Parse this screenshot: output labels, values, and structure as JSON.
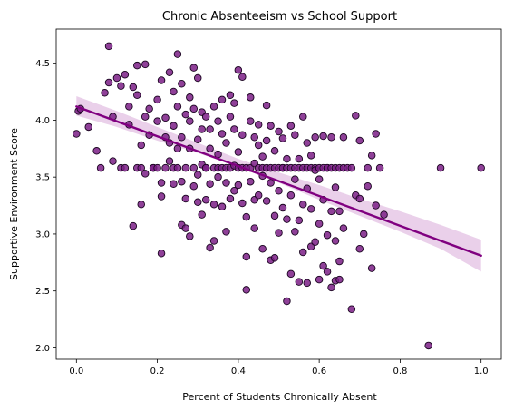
{
  "chart_data": {
    "type": "scatter",
    "title": "Chronic Absenteeism vs School Support",
    "xlabel": "Percent of Students Chronically Absent",
    "ylabel": "Supportive Environment Score",
    "xlim": [
      -0.05,
      1.05
    ],
    "ylim": [
      1.9,
      4.8
    ],
    "xticks": [
      0.0,
      0.2,
      0.4,
      0.6,
      0.8,
      1.0
    ],
    "xtick_labels": [
      "0.0",
      "0.2",
      "0.4",
      "0.6",
      "0.8",
      "1.0"
    ],
    "yticks": [
      2.0,
      2.5,
      3.0,
      3.5,
      4.0,
      4.5
    ],
    "ytick_labels": [
      "2.0",
      "2.5",
      "3.0",
      "3.5",
      "4.0",
      "4.5"
    ],
    "grid": false,
    "legend": "none",
    "point_color": "#7b1f86",
    "point_edge_color": "#1a0520",
    "regression_color": "#800080",
    "ci_color": "#e6c8e6",
    "regression_line": {
      "x": [
        0.0,
        1.0
      ],
      "y": [
        4.12,
        2.81
      ]
    },
    "confidence_band": {
      "x": [
        0.0,
        0.1,
        0.2,
        0.3,
        0.4,
        0.5,
        0.6,
        0.7,
        0.8,
        0.9,
        1.0
      ],
      "lower": [
        4.04,
        3.94,
        3.82,
        3.71,
        3.59,
        3.45,
        3.3,
        3.16,
        3.02,
        2.87,
        2.67
      ],
      "upper": [
        4.21,
        4.08,
        3.94,
        3.8,
        3.66,
        3.54,
        3.43,
        3.31,
        3.2,
        3.08,
        2.95
      ]
    },
    "points": [
      [
        0.0,
        3.88
      ],
      [
        0.005,
        4.08
      ],
      [
        0.01,
        4.1
      ],
      [
        0.03,
        3.94
      ],
      [
        0.05,
        3.73
      ],
      [
        0.06,
        3.58
      ],
      [
        0.07,
        4.24
      ],
      [
        0.08,
        4.33
      ],
      [
        0.08,
        4.65
      ],
      [
        0.09,
        3.64
      ],
      [
        0.09,
        4.03
      ],
      [
        0.1,
        4.37
      ],
      [
        0.11,
        4.3
      ],
      [
        0.11,
        3.58
      ],
      [
        0.12,
        3.58
      ],
      [
        0.12,
        4.4
      ],
      [
        0.13,
        4.12
      ],
      [
        0.13,
        3.96
      ],
      [
        0.14,
        3.07
      ],
      [
        0.14,
        4.29
      ],
      [
        0.15,
        4.48
      ],
      [
        0.15,
        3.58
      ],
      [
        0.15,
        4.22
      ],
      [
        0.16,
        3.26
      ],
      [
        0.16,
        3.58
      ],
      [
        0.16,
        3.78
      ],
      [
        0.17,
        4.49
      ],
      [
        0.17,
        3.53
      ],
      [
        0.17,
        4.03
      ],
      [
        0.18,
        3.87
      ],
      [
        0.18,
        4.1
      ],
      [
        0.19,
        3.58
      ],
      [
        0.19,
        3.58
      ],
      [
        0.2,
        3.99
      ],
      [
        0.2,
        4.18
      ],
      [
        0.2,
        3.58
      ],
      [
        0.21,
        4.35
      ],
      [
        0.21,
        3.45
      ],
      [
        0.21,
        3.33
      ],
      [
        0.21,
        2.83
      ],
      [
        0.22,
        3.58
      ],
      [
        0.22,
        3.85
      ],
      [
        0.22,
        4.02
      ],
      [
        0.23,
        4.42
      ],
      [
        0.23,
        3.8
      ],
      [
        0.23,
        3.64
      ],
      [
        0.24,
        4.25
      ],
      [
        0.24,
        3.44
      ],
      [
        0.24,
        3.58
      ],
      [
        0.24,
        3.95
      ],
      [
        0.25,
        4.58
      ],
      [
        0.25,
        3.75
      ],
      [
        0.25,
        3.58
      ],
      [
        0.25,
        4.12
      ],
      [
        0.26,
        4.32
      ],
      [
        0.26,
        3.08
      ],
      [
        0.26,
        3.46
      ],
      [
        0.26,
        3.85
      ],
      [
        0.27,
        3.58
      ],
      [
        0.27,
        4.05
      ],
      [
        0.27,
        3.31
      ],
      [
        0.27,
        3.05
      ],
      [
        0.28,
        3.75
      ],
      [
        0.28,
        3.99
      ],
      [
        0.28,
        2.98
      ],
      [
        0.28,
        4.2
      ],
      [
        0.29,
        4.1
      ],
      [
        0.29,
        3.42
      ],
      [
        0.29,
        3.58
      ],
      [
        0.29,
        4.46
      ],
      [
        0.3,
        3.52
      ],
      [
        0.3,
        4.37
      ],
      [
        0.3,
        3.83
      ],
      [
        0.3,
        3.28
      ],
      [
        0.31,
        3.17
      ],
      [
        0.31,
        3.61
      ],
      [
        0.31,
        4.07
      ],
      [
        0.31,
        3.92
      ],
      [
        0.32,
        3.58
      ],
      [
        0.32,
        3.3
      ],
      [
        0.32,
        3.58
      ],
      [
        0.32,
        4.03
      ],
      [
        0.33,
        3.75
      ],
      [
        0.33,
        2.88
      ],
      [
        0.33,
        3.44
      ],
      [
        0.33,
        3.92
      ],
      [
        0.34,
        3.58
      ],
      [
        0.34,
        4.12
      ],
      [
        0.34,
        3.26
      ],
      [
        0.34,
        2.94
      ],
      [
        0.35,
        3.7
      ],
      [
        0.35,
        3.58
      ],
      [
        0.35,
        3.99
      ],
      [
        0.35,
        3.5
      ],
      [
        0.36,
        3.88
      ],
      [
        0.36,
        3.58
      ],
      [
        0.36,
        3.24
      ],
      [
        0.36,
        4.18
      ],
      [
        0.37,
        3.02
      ],
      [
        0.37,
        3.58
      ],
      [
        0.37,
        3.8
      ],
      [
        0.37,
        3.45
      ],
      [
        0.38,
        4.03
      ],
      [
        0.38,
        3.58
      ],
      [
        0.38,
        4.22
      ],
      [
        0.38,
        3.31
      ],
      [
        0.39,
        3.6
      ],
      [
        0.39,
        3.38
      ],
      [
        0.39,
        3.92
      ],
      [
        0.39,
        4.15
      ],
      [
        0.4,
        3.72
      ],
      [
        0.4,
        3.58
      ],
      [
        0.4,
        3.43
      ],
      [
        0.4,
        4.44
      ],
      [
        0.41,
        3.27
      ],
      [
        0.41,
        3.58
      ],
      [
        0.41,
        3.87
      ],
      [
        0.41,
        4.38
      ],
      [
        0.42,
        3.58
      ],
      [
        0.42,
        2.8
      ],
      [
        0.42,
        2.51
      ],
      [
        0.42,
        3.15
      ],
      [
        0.43,
        3.99
      ],
      [
        0.43,
        3.58
      ],
      [
        0.43,
        3.46
      ],
      [
        0.43,
        4.2
      ],
      [
        0.44,
        3.3
      ],
      [
        0.44,
        3.62
      ],
      [
        0.44,
        3.85
      ],
      [
        0.44,
        3.05
      ],
      [
        0.45,
        3.58
      ],
      [
        0.45,
        3.78
      ],
      [
        0.45,
        3.34
      ],
      [
        0.45,
        3.96
      ],
      [
        0.46,
        3.51
      ],
      [
        0.46,
        3.58
      ],
      [
        0.46,
        2.87
      ],
      [
        0.46,
        3.68
      ],
      [
        0.47,
        3.58
      ],
      [
        0.47,
        4.13
      ],
      [
        0.47,
        3.29
      ],
      [
        0.47,
        3.82
      ],
      [
        0.48,
        2.77
      ],
      [
        0.48,
        3.58
      ],
      [
        0.48,
        3.45
      ],
      [
        0.48,
        3.95
      ],
      [
        0.49,
        3.58
      ],
      [
        0.49,
        3.16
      ],
      [
        0.49,
        2.79
      ],
      [
        0.49,
        3.73
      ],
      [
        0.5,
        3.58
      ],
      [
        0.5,
        3.38
      ],
      [
        0.5,
        3.01
      ],
      [
        0.5,
        3.9
      ],
      [
        0.51,
        3.58
      ],
      [
        0.51,
        3.23
      ],
      [
        0.51,
        3.84
      ],
      [
        0.51,
        3.58
      ],
      [
        0.52,
        2.41
      ],
      [
        0.52,
        3.58
      ],
      [
        0.52,
        3.13
      ],
      [
        0.52,
        3.66
      ],
      [
        0.53,
        3.58
      ],
      [
        0.53,
        2.65
      ],
      [
        0.53,
        3.95
      ],
      [
        0.53,
        3.34
      ],
      [
        0.54,
        3.58
      ],
      [
        0.54,
        3.02
      ],
      [
        0.54,
        3.48
      ],
      [
        0.54,
        3.87
      ],
      [
        0.55,
        3.58
      ],
      [
        0.55,
        2.58
      ],
      [
        0.55,
        3.12
      ],
      [
        0.55,
        3.66
      ],
      [
        0.56,
        3.58
      ],
      [
        0.56,
        3.26
      ],
      [
        0.56,
        2.84
      ],
      [
        0.56,
        4.03
      ],
      [
        0.57,
        2.57
      ],
      [
        0.57,
        3.58
      ],
      [
        0.57,
        3.4
      ],
      [
        0.57,
        3.8
      ],
      [
        0.58,
        3.58
      ],
      [
        0.58,
        2.89
      ],
      [
        0.58,
        3.69
      ],
      [
        0.58,
        3.22
      ],
      [
        0.59,
        3.58
      ],
      [
        0.59,
        2.93
      ],
      [
        0.59,
        3.56
      ],
      [
        0.59,
        3.85
      ],
      [
        0.6,
        3.58
      ],
      [
        0.6,
        2.6
      ],
      [
        0.6,
        3.09
      ],
      [
        0.6,
        3.48
      ],
      [
        0.61,
        3.58
      ],
      [
        0.61,
        2.72
      ],
      [
        0.61,
        3.86
      ],
      [
        0.61,
        3.3
      ],
      [
        0.62,
        3.58
      ],
      [
        0.62,
        2.99
      ],
      [
        0.62,
        2.67
      ],
      [
        0.62,
        3.58
      ],
      [
        0.63,
        2.53
      ],
      [
        0.63,
        3.2
      ],
      [
        0.63,
        3.58
      ],
      [
        0.63,
        3.85
      ],
      [
        0.64,
        2.94
      ],
      [
        0.64,
        3.58
      ],
      [
        0.64,
        2.59
      ],
      [
        0.64,
        3.41
      ],
      [
        0.65,
        2.76
      ],
      [
        0.65,
        3.58
      ],
      [
        0.65,
        3.2
      ],
      [
        0.65,
        2.6
      ],
      [
        0.66,
        3.58
      ],
      [
        0.66,
        3.05
      ],
      [
        0.66,
        3.85
      ],
      [
        0.67,
        3.58
      ],
      [
        0.68,
        2.34
      ],
      [
        0.68,
        3.58
      ],
      [
        0.69,
        4.04
      ],
      [
        0.69,
        3.34
      ],
      [
        0.7,
        2.87
      ],
      [
        0.7,
        3.31
      ],
      [
        0.7,
        3.82
      ],
      [
        0.71,
        3.0
      ],
      [
        0.72,
        3.58
      ],
      [
        0.72,
        3.42
      ],
      [
        0.73,
        2.7
      ],
      [
        0.73,
        3.69
      ],
      [
        0.74,
        3.88
      ],
      [
        0.74,
        3.25
      ],
      [
        0.75,
        3.58
      ],
      [
        0.76,
        3.17
      ],
      [
        0.87,
        2.02
      ],
      [
        0.9,
        3.58
      ],
      [
        1.0,
        3.58
      ]
    ]
  }
}
